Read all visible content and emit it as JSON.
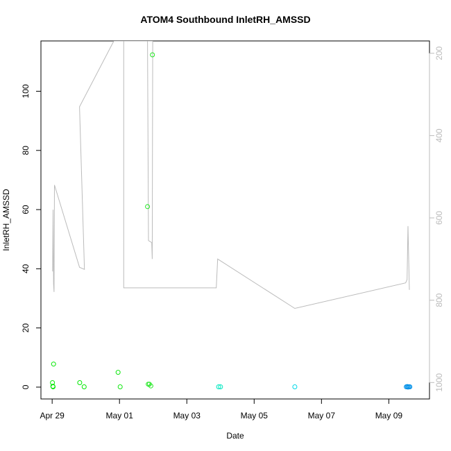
{
  "chart_data": {
    "type": "scatter",
    "title": "ATOM4 Southbound InletRH_AMSSD",
    "xlabel": "Date",
    "ylabel": "InletRH_AMSSD",
    "x_ticks": [
      "Apr 29",
      "May 01",
      "May 03",
      "May 05",
      "May 07",
      "May 09"
    ],
    "xlim": [
      "2017-04-28T16:00",
      "2017-05-10T05:00"
    ],
    "y_ticks": [
      0,
      20,
      40,
      60,
      80,
      100
    ],
    "ylim": [
      -4,
      117
    ],
    "y2_ticks": [
      200,
      400,
      600,
      800,
      1000
    ],
    "y2lim": [
      1040,
      170
    ],
    "y2_reversed": true,
    "grid": false,
    "points": [
      {
        "x": "2017-04-29T00:12",
        "y": 1.5,
        "color": "#00e800"
      },
      {
        "x": "2017-04-29T00:30",
        "y": 0.3,
        "color": "#00e800"
      },
      {
        "x": "2017-04-29T00:40",
        "y": 0.1,
        "color": "#00e800"
      },
      {
        "x": "2017-04-29T01:00",
        "y": 7.8,
        "color": "#00e800"
      },
      {
        "x": "2017-04-29T19:40",
        "y": 1.5,
        "color": "#00e800"
      },
      {
        "x": "2017-04-29T22:50",
        "y": 0.1,
        "color": "#00e800"
      },
      {
        "x": "2017-04-30T23:00",
        "y": 5.0,
        "color": "#10e810"
      },
      {
        "x": "2017-05-01T00:30",
        "y": 0.1,
        "color": "#10e810"
      },
      {
        "x": "2017-05-01T20:30",
        "y": 1.0,
        "color": "#20e820"
      },
      {
        "x": "2017-05-01T21:20",
        "y": 1.0,
        "color": "#20e820"
      },
      {
        "x": "2017-05-01T22:20",
        "y": 0.4,
        "color": "#20e820"
      },
      {
        "x": "2017-05-01T20:00",
        "y": 61.0,
        "color": "#20e820"
      },
      {
        "x": "2017-05-01T23:30",
        "y": 112.3,
        "color": "#20e820"
      },
      {
        "x": "2017-05-03T22:40",
        "y": 0.1,
        "color": "#00e8c0"
      },
      {
        "x": "2017-05-04T00:00",
        "y": 0.1,
        "color": "#00e8c0"
      },
      {
        "x": "2017-05-06T05:00",
        "y": 0.1,
        "color": "#00d8e8"
      },
      {
        "x": "2017-05-09T12:30",
        "y": 0.1,
        "color": "#0090e8"
      },
      {
        "x": "2017-05-09T13:10",
        "y": 0.2,
        "color": "#0090e8"
      },
      {
        "x": "2017-05-09T13:40",
        "y": 0.0,
        "color": "#0090e8"
      },
      {
        "x": "2017-05-09T14:20",
        "y": 0.1,
        "color": "#0090e8"
      },
      {
        "x": "2017-05-09T15:00",
        "y": 0.1,
        "color": "#0090e8"
      }
    ],
    "secondary_series": {
      "color": "#bbbbbb",
      "x": [
        "2017-04-29T00:20",
        "2017-04-29T00:40",
        "2017-04-29T01:00",
        "2017-04-29T01:20",
        "2017-04-29T01:40",
        "2017-04-29T19:30",
        "2017-04-29T23:00",
        "2017-04-29T19:30",
        "2017-04-30T20:00",
        "2017-05-01T23:00",
        "2017-05-01T20:00",
        "2017-05-01T20:40",
        "2017-05-01T23:00",
        "2017-05-01T23:20",
        "2017-05-01T23:40",
        "2017-05-01T23:20",
        "2017-05-01T23:00",
        "2017-05-01T22:30",
        "2017-05-01T23:00",
        "2017-05-01T23:40",
        "2017-05-01T23:20",
        "2017-05-01T05:00",
        "2017-05-01T04:20",
        "2017-05-01T03:40",
        "2017-05-01T03:00",
        "2017-05-01T03:00",
        "2017-05-03T21:00",
        "2017-05-03T22:00",
        "2017-05-06T05:00",
        "2017-05-09T12:00",
        "2017-05-09T13:00",
        "2017-05-09T13:40",
        "2017-05-09T14:40"
      ],
      "y": [
        730,
        580,
        760,
        780,
        520,
        720,
        725,
        330,
        170,
        170,
        170,
        655,
        660,
        700,
        170,
        170,
        170,
        170,
        170,
        170,
        170,
        170,
        170,
        170,
        170,
        770,
        770,
        700,
        820,
        758,
        750,
        620,
        775
      ]
    }
  }
}
